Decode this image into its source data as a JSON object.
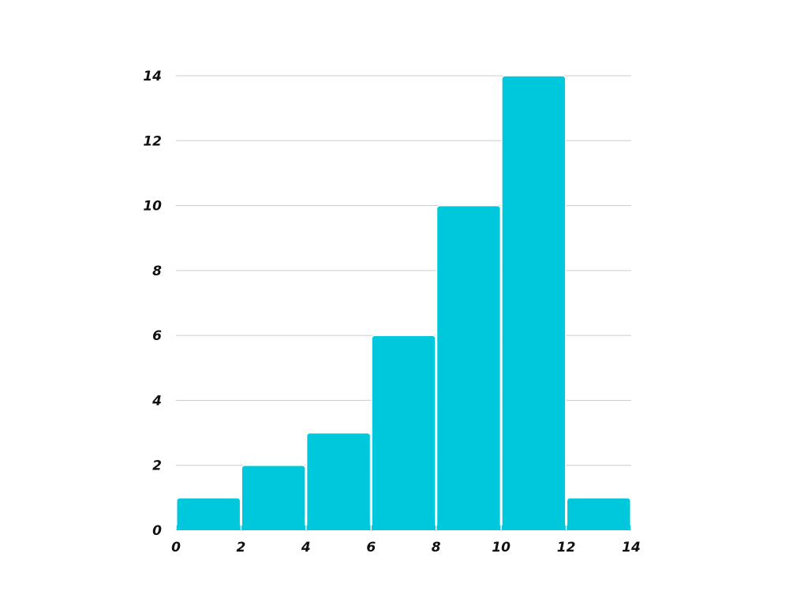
{
  "chart_data": {
    "type": "bar",
    "subtype": "histogram",
    "bins": [
      {
        "start": 0,
        "end": 2,
        "value": 1
      },
      {
        "start": 2,
        "end": 4,
        "value": 2
      },
      {
        "start": 4,
        "end": 6,
        "value": 3
      },
      {
        "start": 6,
        "end": 8,
        "value": 6
      },
      {
        "start": 8,
        "end": 10,
        "value": 10
      },
      {
        "start": 10,
        "end": 12,
        "value": 14
      },
      {
        "start": 12,
        "end": 14,
        "value": 1
      }
    ],
    "title": "",
    "xlabel": "",
    "ylabel": "",
    "xlim": [
      0,
      14
    ],
    "ylim": [
      0,
      14
    ],
    "xticks": [
      "0",
      "2",
      "4",
      "6",
      "8",
      "10",
      "12",
      "14"
    ],
    "yticks": [
      "0",
      "2",
      "4",
      "6",
      "8",
      "10",
      "12",
      "14"
    ],
    "grid": "horizontal",
    "legend": "none",
    "bar_color": "#00c8dc"
  }
}
